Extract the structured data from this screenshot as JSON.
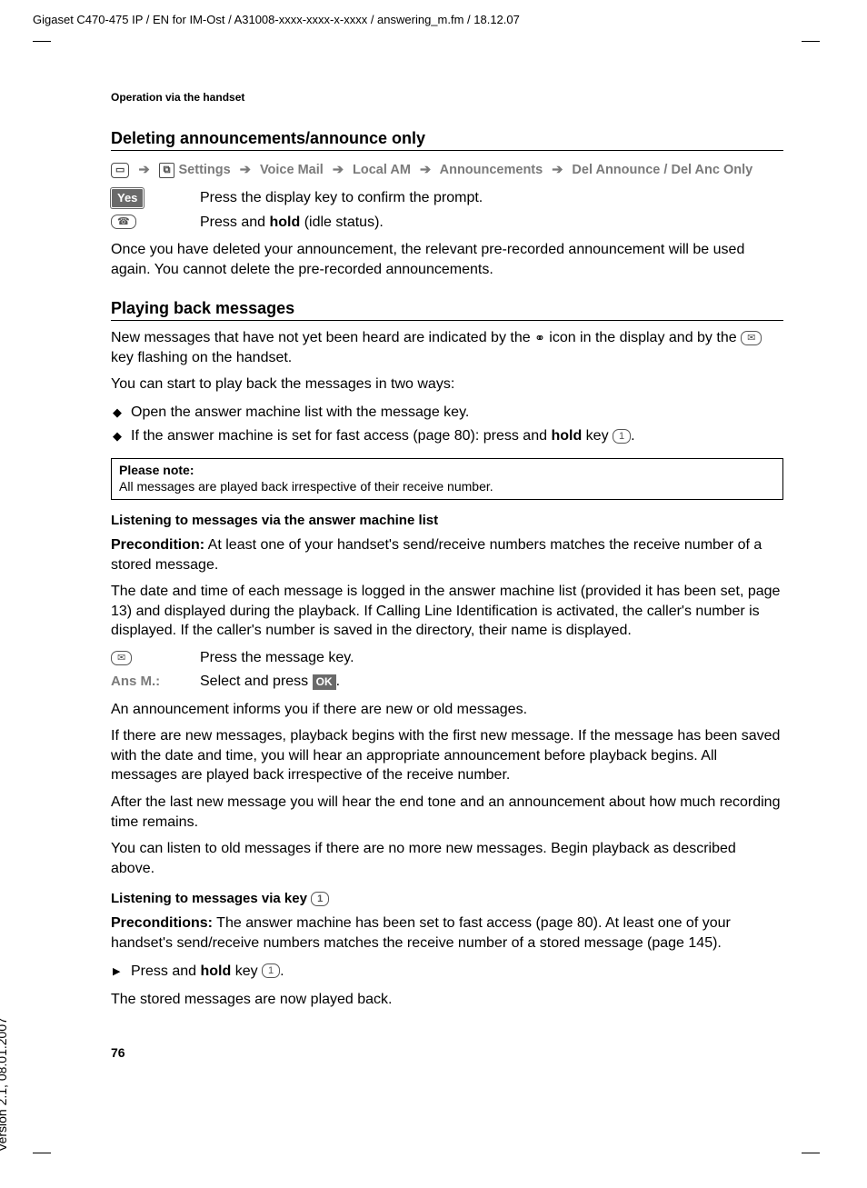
{
  "header": "Gigaset C470-475 IP / EN for IM-Ost / A31008-xxxx-xxxx-x-xxxx / answering_m.fm / 18.12.07",
  "version": "Version 2.1, 08.01.2007",
  "running_head": "Operation via the handset",
  "page_number": "76",
  "s1": {
    "title": "Deleting announcements/announce only",
    "nav": {
      "menu_icon": "▭",
      "settings_icon": "⧉",
      "items": [
        "Settings",
        "Voice Mail",
        "Local AM",
        "Announcements",
        "Del Announce"
      ],
      "sep": "/",
      "tail": "Del Anc Only"
    },
    "step1": {
      "label": "Yes",
      "text": "Press the display key to confirm the prompt."
    },
    "step2": {
      "icon": "☎",
      "text_a": "Press and ",
      "bold": "hold",
      "text_b": " (idle status)."
    },
    "para": "Once you have deleted your announcement, the relevant pre-recorded announcement will be used again. You cannot delete the pre-recorded announcements."
  },
  "s2": {
    "title": "Playing back messages",
    "p1a": "New messages that have not yet been heard are indicated by the ",
    "p1_icon": "⚭",
    "p1b": " icon in the display and by the ",
    "p1_key": "✉",
    "p1c": " key flashing on the handset.",
    "p2": "You can start to play back the messages in two ways:",
    "bullets": {
      "b1": "Open the answer machine list with the message key.",
      "b2a": "If the answer machine is set for fast access (page 80): press and ",
      "b2_bold": "hold",
      "b2b": " key ",
      "b2_key": "1"
    },
    "note": {
      "title": "Please note:",
      "body": "All messages are played back irrespective of their receive number."
    }
  },
  "s3": {
    "title": "Listening to messages via the answer machine list",
    "pre_label": "Precondition:",
    "pre_text": " At least one of your handset's send/receive numbers matches the receive number of a stored message.",
    "p1": "The date and time of each message is logged in the answer machine list (provided it has been set, page 13) and displayed during the playback. If Calling Line Identification is activated, the caller's number  is displayed. If the caller's number is saved in the directory, their name is displayed.",
    "step1": {
      "icon": "✉",
      "text": "Press the message key."
    },
    "step2": {
      "label": "Ans M.:",
      "text_a": "Select and press ",
      "ok": "OK",
      "text_b": "."
    },
    "p2": "An announcement informs you if there are new or old messages.",
    "p3": "If there are new messages, playback begins with the first new message. If the message has been saved with the date and time, you will hear an appropriate announcement before playback begins. All messages are played back irrespective of the receive number.",
    "p4": "After the last new message you will hear the end tone and an announcement about how much recording time remains.",
    "p5": "You can listen to old messages if there are no more new messages. Begin playback as described above."
  },
  "s4": {
    "title_a": "Listening to messages via key ",
    "title_key": "1",
    "pre_label": "Preconditions:",
    "pre_text": " The answer machine has been set to fast access (page 80). At least one of your handset's send/receive numbers matches the receive number of a stored message (page 145).",
    "bullet_a": "Press and ",
    "bullet_bold": "hold",
    "bullet_b": " key ",
    "bullet_key": "1",
    "p1": "The stored messages are now played back."
  }
}
